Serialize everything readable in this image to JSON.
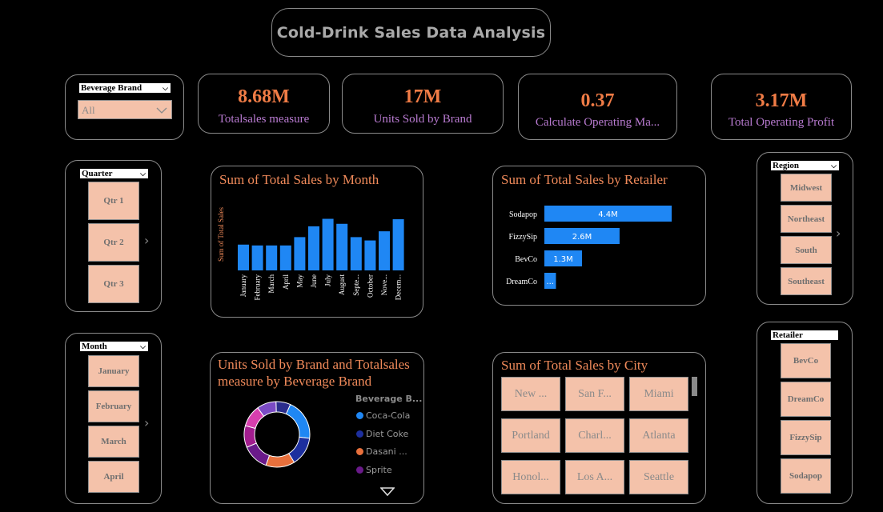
{
  "title": "Cold-Drink Sales Data Analysis",
  "slicers": {
    "brand": {
      "label": "Beverage Brand",
      "value": "All"
    },
    "quarter": {
      "label": "Quarter",
      "items": [
        "Qtr 1",
        "Qtr 2",
        "Qtr 3"
      ]
    },
    "month": {
      "label": "Month",
      "items": [
        "January",
        "February",
        "March",
        "April"
      ]
    },
    "region": {
      "label": "Region",
      "items": [
        "Midwest",
        "Northeast",
        "South",
        "Southeast"
      ]
    },
    "retailer": {
      "label": "Retailer",
      "items": [
        "BevCo",
        "DreamCo",
        "FizzySip",
        "Sodapop"
      ]
    }
  },
  "kpis": [
    {
      "value": "8.68M",
      "label": "Totalsales measure"
    },
    {
      "value": "17M",
      "label": "Units Sold by Brand"
    },
    {
      "value": "0.37",
      "label": "Calculate Operating Ma..."
    },
    {
      "value": "3.17M",
      "label": "Total Operating Profit"
    }
  ],
  "charts": {
    "month": {
      "title": "Sum of Total Sales by Month",
      "ylabel": "Sum of Total Sales"
    },
    "retailer": {
      "title": "Sum of Total Sales by Retailer"
    },
    "donut": {
      "title_line1": "Units Sold by Brand and Totalsales",
      "title_line2": "measure by Beverage Brand",
      "legend_title": "Beverage B..."
    },
    "city": {
      "title": "Sum of Total Sales by City",
      "items": [
        "New ...",
        "San F...",
        "Miami",
        "Portland",
        "Charl...",
        "Atlanta",
        "Honol...",
        "Los A...",
        "Seattle"
      ]
    }
  },
  "chart_data": [
    {
      "type": "bar",
      "title": "Sum of Total Sales by Month",
      "ylabel": "Sum of Total Sales",
      "categories": [
        "January",
        "February",
        "March",
        "April",
        "May",
        "June",
        "July",
        "August",
        "Septe...",
        "October",
        "Nove...",
        "Decem..."
      ],
      "values": [
        0.62,
        0.6,
        0.6,
        0.6,
        0.8,
        1.06,
        1.24,
        1.12,
        0.8,
        0.72,
        0.94,
        1.23
      ],
      "ylim": [
        0,
        1.25
      ],
      "color": "#1f87f4"
    },
    {
      "type": "bar",
      "orientation": "horizontal",
      "title": "Sum of Total Sales by Retailer",
      "categories": [
        "Sodapop",
        "FizzySip",
        "BevCo",
        "DreamCo"
      ],
      "values": [
        4.4,
        2.6,
        1.3,
        0.4
      ],
      "labels": [
        "4.4M",
        "2.6M",
        "1.3M",
        "..."
      ],
      "xlim": [
        0,
        4.4
      ],
      "color": "#1f87f4"
    },
    {
      "type": "pie",
      "title": "Units Sold by Brand and Totalsales measure by Beverage Brand",
      "legend_title": "Beverage B...",
      "categories": [
        "Coca-Cola",
        "Diet Coke",
        "Dasani ...",
        "Sprite"
      ],
      "segments": [
        {
          "name": "Coca-Cola",
          "value": 17,
          "color": "#1f87f4"
        },
        {
          "name": "Diet Coke",
          "value": 12,
          "color": "#1d2f9e"
        },
        {
          "name": "Dasani ...",
          "value": 12,
          "color": "#e8703c"
        },
        {
          "name": "Sprite",
          "value": 11,
          "color": "#6a1a8a"
        },
        {
          "name": "",
          "value": 9,
          "color": "#a21d8e"
        },
        {
          "name": "",
          "value": 9,
          "color": "#d83fae"
        },
        {
          "name": "",
          "value": 8,
          "color": "#7b4bc4"
        },
        {
          "name": "",
          "value": 6,
          "color": "#2b2d8c"
        }
      ]
    }
  ]
}
